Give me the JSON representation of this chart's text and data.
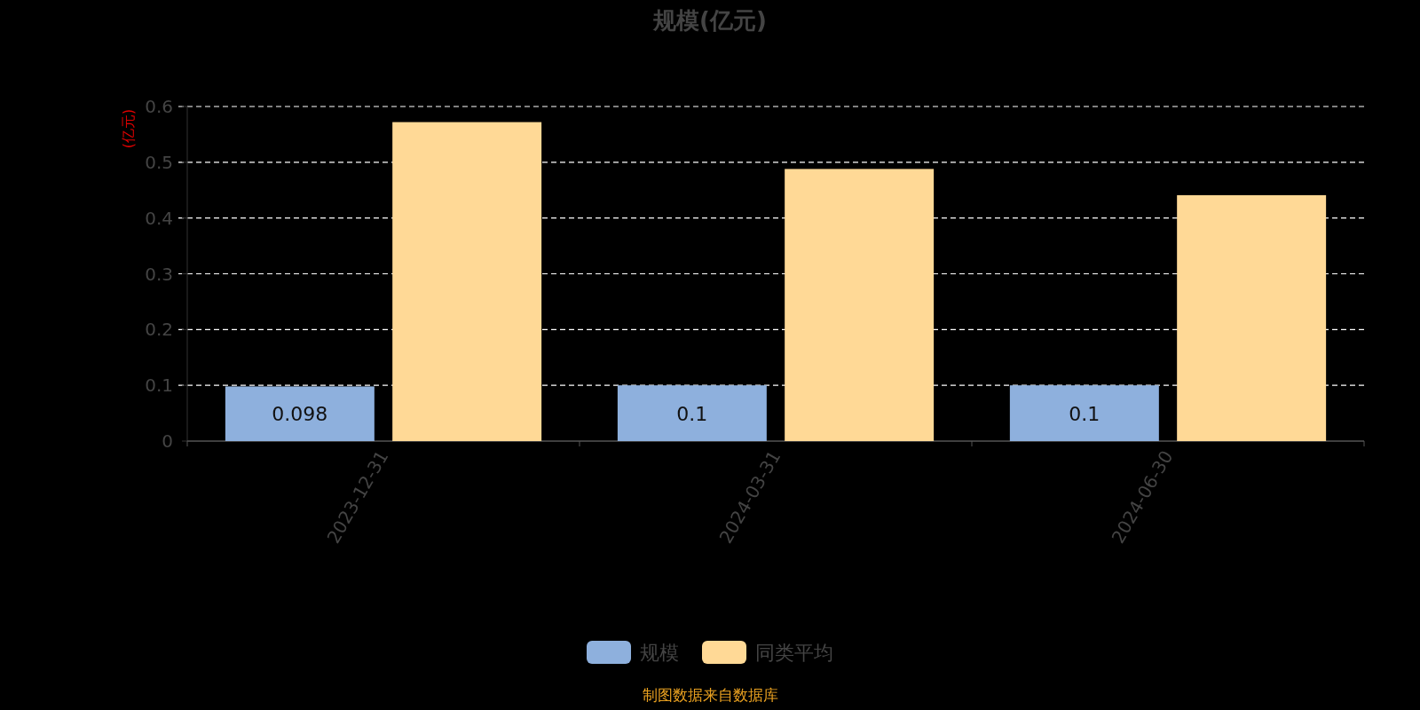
{
  "chart_data": {
    "type": "bar",
    "title": "规模(亿元)",
    "ylabel": "(亿元)",
    "categories": [
      "2023-12-31",
      "2024-03-31",
      "2024-06-30"
    ],
    "series": [
      {
        "name": "规模",
        "color": "#8eb0dd",
        "values": [
          0.098,
          0.1,
          0.1
        ],
        "value_labels": [
          "0.098",
          "0.1",
          "0.1"
        ]
      },
      {
        "name": "同类平均",
        "color": "#ffd996",
        "values": [
          0.572,
          0.488,
          0.441
        ]
      }
    ],
    "ylim": [
      0,
      0.6
    ],
    "yticks": [
      0,
      0.1,
      0.2,
      0.3,
      0.4,
      0.5,
      0.6
    ],
    "grid": "y",
    "legend": "bottom",
    "annotations": [
      "制图数据来自数据库"
    ]
  }
}
